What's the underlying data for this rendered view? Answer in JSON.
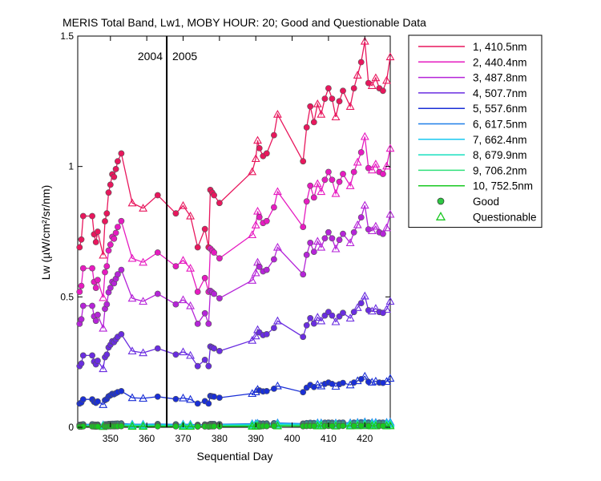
{
  "chart_data": {
    "type": "line",
    "title": "MERIS Total Band,  Lw1, MOBY HOUR: 20;  Good and Questionable Data",
    "xlabel": "Sequential Day",
    "ylabel": "Lw (µW/cm²/sr/nm)",
    "xlim": [
      341,
      427
    ],
    "ylim": [
      0,
      1.5
    ],
    "xticks": [
      350,
      360,
      370,
      380,
      390,
      400,
      410,
      420
    ],
    "yticks": [
      0,
      0.5,
      1,
      1.5
    ],
    "ytick_labels": [
      "0",
      "0.5",
      "1",
      "1.5"
    ],
    "grid": false,
    "legend_position": "outside-right",
    "year_boundary": {
      "x": 365.5,
      "left_label": "2004",
      "right_label": "2005"
    },
    "series": [
      {
        "name": "1, 410.5nm",
        "color": "#e8175d",
        "scale": 1.0
      },
      {
        "name": "2, 440.4nm",
        "color": "#e61bc0",
        "scale": 0.753
      },
      {
        "name": "3, 487.8nm",
        "color": "#b524d8",
        "scale": 0.575
      },
      {
        "name": "4, 507.7nm",
        "color": "#6a2de0",
        "scale": 0.34
      },
      {
        "name": "5, 557.6nm",
        "color": "#1a2fd6",
        "scale": 0.132
      },
      {
        "name": "6, 617.5nm",
        "color": "#1f7fe8",
        "scale": 0.014
      },
      {
        "name": "7, 662.4nm",
        "color": "#19c8f0",
        "scale": 0.011
      },
      {
        "name": "8, 679.9nm",
        "color": "#19e0c0",
        "scale": 0.009
      },
      {
        "name": "9, 706.2nm",
        "color": "#2fe07a",
        "scale": 0.006
      },
      {
        "name": "10, 752.5nm",
        "color": "#19c821",
        "scale": 0.004
      }
    ],
    "x": [
      341.5,
      342,
      342.5,
      345,
      345.5,
      346,
      346.5,
      348,
      348.5,
      349,
      349.5,
      350,
      350.5,
      351,
      351.5,
      352,
      353,
      356,
      359,
      363,
      368,
      370,
      372,
      374,
      376,
      377,
      377.5,
      378,
      378.5,
      380,
      389,
      390,
      390.5,
      391,
      392,
      393,
      395,
      396,
      403,
      404,
      405,
      406,
      407,
      408,
      409,
      410,
      411,
      412,
      413,
      414,
      416,
      417,
      418,
      419,
      420,
      421,
      422,
      423,
      424,
      425,
      426,
      427
    ],
    "band1_values": [
      0.69,
      0.72,
      0.81,
      0.81,
      0.74,
      0.71,
      0.75,
      0.66,
      0.79,
      0.82,
      0.9,
      0.93,
      0.97,
      0.96,
      0.99,
      1.02,
      1.05,
      0.86,
      0.84,
      0.89,
      0.82,
      0.85,
      0.81,
      0.69,
      0.76,
      0.69,
      0.91,
      0.9,
      0.89,
      0.86,
      0.98,
      1.03,
      1.1,
      1.07,
      1.04,
      1.05,
      1.12,
      1.2,
      1.02,
      1.15,
      1.23,
      1.17,
      1.24,
      1.2,
      1.26,
      1.3,
      1.26,
      1.19,
      1.25,
      1.29,
      1.23,
      1.3,
      1.35,
      1.4,
      1.48,
      1.32,
      1.31,
      1.34,
      1.3,
      1.29,
      1.33,
      1.42
    ],
    "band1_quality": [
      "g",
      "g",
      "g",
      "g",
      "g",
      "g",
      "g",
      "q",
      "g",
      "g",
      "g",
      "g",
      "g",
      "g",
      "g",
      "g",
      "g",
      "q",
      "q",
      "g",
      "g",
      "q",
      "q",
      "g",
      "g",
      "g",
      "g",
      "g",
      "g",
      "g",
      "q",
      "q",
      "q",
      "g",
      "g",
      "g",
      "g",
      "q",
      "g",
      "g",
      "g",
      "g",
      "q",
      "q",
      "g",
      "g",
      "g",
      "q",
      "g",
      "g",
      "q",
      "g",
      "q",
      "g",
      "q",
      "g",
      "q",
      "q",
      "g",
      "g",
      "q",
      "q"
    ]
  },
  "legend": {
    "good_label": "Good",
    "questionable_label": "Questionable",
    "good_color": "#2fc844",
    "questionable_color": "#19c821"
  }
}
